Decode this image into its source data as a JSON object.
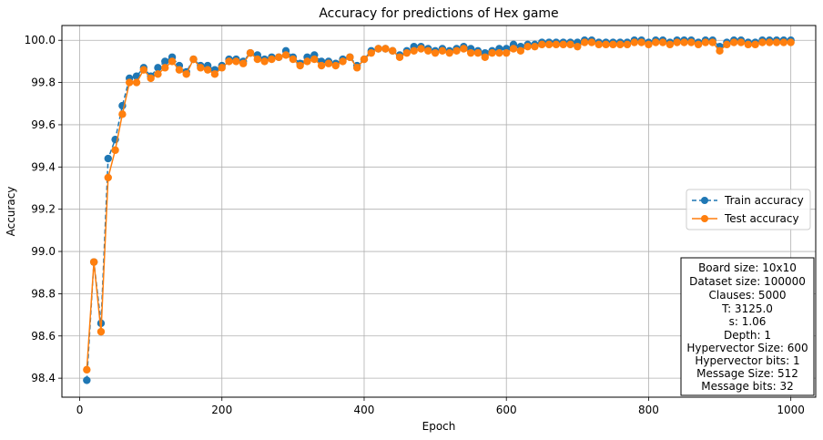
{
  "chart_data": {
    "type": "line",
    "title": "Accuracy for predictions of Hex game",
    "xlabel": "Epoch",
    "ylabel": "Accuracy",
    "xlim": [
      -25,
      1035
    ],
    "ylim": [
      98.31,
      100.07
    ],
    "xticks": [
      0,
      200,
      400,
      600,
      800,
      1000
    ],
    "xtick_labels": [
      "0",
      "200",
      "400",
      "600",
      "800",
      "1000"
    ],
    "yticks": [
      98.4,
      98.6,
      98.8,
      99.0,
      99.2,
      99.4,
      99.6,
      99.8,
      100.0
    ],
    "ytick_labels": [
      "98.4",
      "98.6",
      "98.8",
      "99.0",
      "99.2",
      "99.4",
      "99.6",
      "99.8",
      "100.0"
    ],
    "grid": true,
    "legend_position": "right",
    "x": [
      10,
      20,
      30,
      40,
      50,
      60,
      70,
      80,
      90,
      100,
      110,
      120,
      130,
      140,
      150,
      160,
      170,
      180,
      190,
      200,
      210,
      220,
      230,
      240,
      250,
      260,
      270,
      280,
      290,
      300,
      310,
      320,
      330,
      340,
      350,
      360,
      370,
      380,
      390,
      400,
      410,
      420,
      430,
      440,
      450,
      460,
      470,
      480,
      490,
      500,
      510,
      520,
      530,
      540,
      550,
      560,
      570,
      580,
      590,
      600,
      610,
      620,
      630,
      640,
      650,
      660,
      670,
      680,
      690,
      700,
      710,
      720,
      730,
      740,
      750,
      760,
      770,
      780,
      790,
      800,
      810,
      820,
      830,
      840,
      850,
      860,
      870,
      880,
      890,
      900,
      910,
      920,
      930,
      940,
      950,
      960,
      970,
      980,
      990,
      1000
    ],
    "series": [
      {
        "name": "Train accuracy",
        "color": "#1f77b4",
        "linestyle": "dashed",
        "values": [
          98.39,
          98.95,
          98.66,
          99.44,
          99.53,
          99.69,
          99.82,
          99.83,
          99.87,
          99.83,
          99.87,
          99.9,
          99.92,
          99.88,
          99.85,
          99.91,
          99.88,
          99.88,
          99.86,
          99.88,
          99.91,
          99.91,
          99.9,
          99.94,
          99.93,
          99.91,
          99.92,
          99.92,
          99.95,
          99.92,
          99.89,
          99.92,
          99.93,
          99.9,
          99.9,
          99.89,
          99.91,
          99.92,
          99.88,
          99.91,
          99.95,
          99.96,
          99.96,
          99.95,
          99.93,
          99.95,
          99.97,
          99.97,
          99.96,
          99.95,
          99.96,
          99.95,
          99.96,
          99.97,
          99.96,
          99.95,
          99.94,
          99.95,
          99.96,
          99.96,
          99.98,
          99.97,
          99.98,
          99.98,
          99.99,
          99.99,
          99.99,
          99.99,
          99.99,
          99.99,
          100.0,
          100.0,
          99.99,
          99.99,
          99.99,
          99.99,
          99.99,
          100.0,
          100.0,
          99.99,
          100.0,
          100.0,
          99.99,
          100.0,
          100.0,
          100.0,
          99.99,
          100.0,
          100.0,
          99.97,
          99.99,
          100.0,
          100.0,
          99.99,
          99.99,
          100.0,
          100.0,
          100.0,
          100.0,
          100.0
        ]
      },
      {
        "name": "Test accuracy",
        "color": "#ff7f0e",
        "linestyle": "solid",
        "values": [
          98.44,
          98.95,
          98.62,
          99.35,
          99.48,
          99.65,
          99.8,
          99.8,
          99.86,
          99.82,
          99.84,
          99.87,
          99.9,
          99.86,
          99.84,
          99.91,
          99.87,
          99.86,
          99.84,
          99.87,
          99.9,
          99.9,
          99.89,
          99.94,
          99.91,
          99.9,
          99.91,
          99.92,
          99.93,
          99.91,
          99.88,
          99.9,
          99.91,
          99.88,
          99.89,
          99.88,
          99.9,
          99.92,
          99.87,
          99.91,
          99.94,
          99.96,
          99.96,
          99.95,
          99.92,
          99.94,
          99.95,
          99.96,
          99.95,
          99.94,
          99.95,
          99.94,
          99.95,
          99.96,
          99.94,
          99.94,
          99.92,
          99.94,
          99.94,
          99.94,
          99.96,
          99.95,
          99.97,
          99.97,
          99.98,
          99.98,
          99.98,
          99.98,
          99.98,
          99.97,
          99.99,
          99.99,
          99.98,
          99.98,
          99.98,
          99.98,
          99.98,
          99.99,
          99.99,
          99.98,
          99.99,
          99.99,
          99.98,
          99.99,
          99.99,
          99.99,
          99.98,
          99.99,
          99.99,
          99.95,
          99.98,
          99.99,
          99.99,
          99.98,
          99.98,
          99.99,
          99.99,
          99.99,
          99.99,
          99.99
        ]
      }
    ],
    "legend": [
      "Train accuracy",
      "Test accuracy"
    ],
    "annotation_box": [
      "Board size: 10x10",
      "Dataset size: 100000",
      "Clauses: 5000",
      "T: 3125.0",
      "s: 1.06",
      "Depth: 1",
      "Hypervector Size: 600",
      "Hypervector bits: 1",
      "Message Size: 512",
      "Message bits: 32"
    ]
  }
}
